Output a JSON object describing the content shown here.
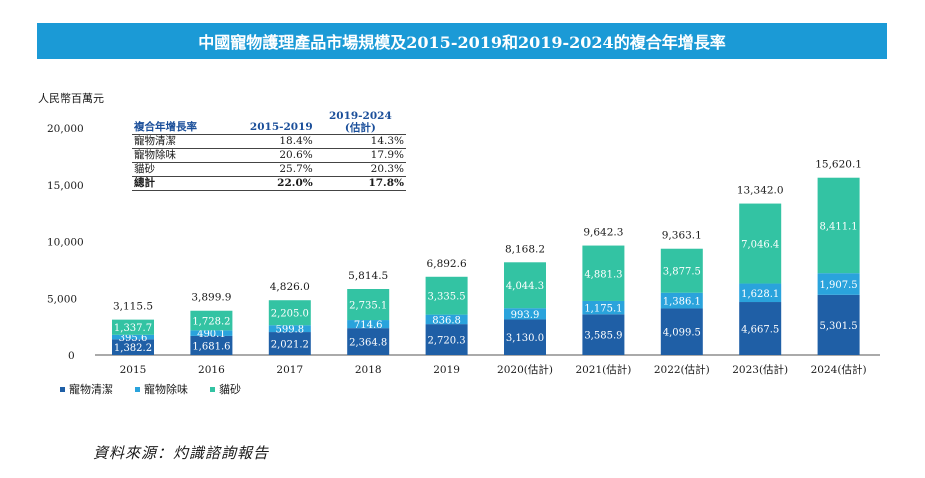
{
  "chart_data": {
    "type": "bar",
    "stacked": true,
    "title": "中國寵物護理產品市場規模及2015-2019和2019-2024的複合年增長率",
    "ylabel": "人民幣百萬元",
    "ylim": [
      0,
      20000
    ],
    "yticks": [
      "0",
      "5,000",
      "10,000",
      "15,000",
      "20,000"
    ],
    "categories": [
      "2015",
      "2016",
      "2017",
      "2018",
      "2019",
      "2020(估計)",
      "2021(估計)",
      "2022(估計)",
      "2023(估計)",
      "2024(估計)"
    ],
    "series": [
      {
        "name": "寵物清潔",
        "color": "#1f5fa6",
        "values": [
          1382.2,
          1681.6,
          2021.2,
          2364.8,
          2720.3,
          3130.0,
          3585.9,
          4099.5,
          4667.5,
          5301.5
        ],
        "labels": [
          "1,382.2",
          "1,681.6",
          "2,021.2",
          "2,364.8",
          "2,720.3",
          "3,130.0",
          "3,585.9",
          "4,099.5",
          "4,667.5",
          "5,301.5"
        ]
      },
      {
        "name": "寵物除味",
        "color": "#2aa3dc",
        "values": [
          395.6,
          490.1,
          599.8,
          714.6,
          836.8,
          993.9,
          1175.1,
          1386.1,
          1628.1,
          1907.5
        ],
        "labels": [
          "395.6",
          "490.1",
          "599.8",
          "714.6",
          "836.8",
          "993.9",
          "1,175.1",
          "1,386.1",
          "1,628.1",
          "1,907.5"
        ]
      },
      {
        "name": "貓砂",
        "color": "#33c3a3",
        "values": [
          1337.7,
          1728.2,
          2205.0,
          2735.1,
          3335.5,
          4044.3,
          4881.3,
          3877.5,
          7046.4,
          8411.1
        ],
        "labels": [
          "1,337.7",
          "1,728.2",
          "2,205.0",
          "2,735.1",
          "3,335.5",
          "4,044.3",
          "4,881.3",
          "3,877.5",
          "7,046.4",
          "8,411.1"
        ]
      }
    ],
    "totals": [
      3115.5,
      3899.9,
      4826.0,
      5814.5,
      6892.6,
      8168.2,
      9642.3,
      9363.1,
      13342.0,
      15620.1
    ],
    "total_labels": [
      "3,115.5",
      "3,899.9",
      "4,826.0",
      "5,814.5",
      "6,892.6",
      "8,168.2",
      "9,642.3",
      "9,363.1",
      "13,342.0",
      "15,620.1"
    ],
    "legend_position": "bottom-left",
    "grid": false
  },
  "cagr_table": {
    "header": [
      "複合年增長率",
      "2015-2019",
      "2019-2024",
      "(估計)"
    ],
    "rows": [
      [
        "寵物清潔",
        "18.4%",
        "14.3%"
      ],
      [
        "寵物除味",
        "20.6%",
        "17.9%"
      ],
      [
        "貓砂",
        "25.7%",
        "20.3%"
      ],
      [
        "總計",
        "22.0%",
        "17.8%"
      ]
    ]
  },
  "source": "資料來源：灼識諮詢報告"
}
